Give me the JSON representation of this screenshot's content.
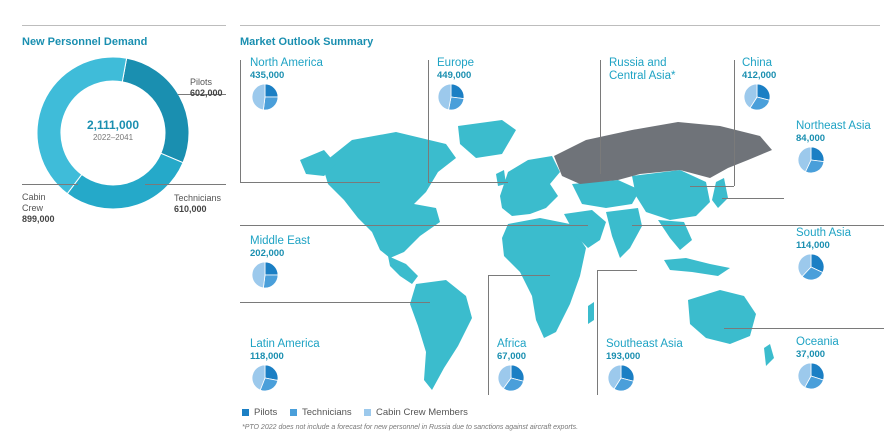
{
  "chart_data": [
    {
      "type": "pie",
      "title": "New Personnel Demand",
      "center_value": "2,111,000",
      "center_sub": "2022–2041",
      "categories": [
        "Pilots",
        "Technicians",
        "Cabin Crew"
      ],
      "values": [
        602000,
        610000,
        899000
      ],
      "labels": [
        {
          "name": "Pilots",
          "value": "602,000"
        },
        {
          "name": "Technicians",
          "value": "610,000"
        },
        {
          "name_line1": "Cabin",
          "name_line2": "Crew",
          "value": "899,000"
        }
      ],
      "colors": [
        "#1a8fb0",
        "#25a9c9",
        "#3fbcd9"
      ]
    },
    {
      "type": "pie",
      "title": "Market Outlook Summary",
      "series_labels": [
        "Pilots",
        "Technicians",
        "Cabin Crew Members"
      ],
      "series_colors": [
        "#1b7fc4",
        "#4a9fda",
        "#9cc9ec"
      ],
      "regions": [
        {
          "name": "North America",
          "total": "435,000",
          "shares": [
            0.25,
            0.27,
            0.48
          ]
        },
        {
          "name": "Europe",
          "total": "449,000",
          "shares": [
            0.27,
            0.26,
            0.47
          ]
        },
        {
          "name_line1": "Russia and",
          "name_line2": "Central Asia*",
          "total": ""
        },
        {
          "name": "China",
          "total": "412,000",
          "shares": [
            0.29,
            0.3,
            0.41
          ]
        },
        {
          "name": "Northeast Asia",
          "total": "84,000",
          "shares": [
            0.27,
            0.3,
            0.43
          ]
        },
        {
          "name": "Middle East",
          "total": "202,000",
          "shares": [
            0.25,
            0.27,
            0.48
          ]
        },
        {
          "name": "South Asia",
          "total": "114,000",
          "shares": [
            0.32,
            0.3,
            0.38
          ]
        },
        {
          "name": "Latin America",
          "total": "118,000",
          "shares": [
            0.28,
            0.28,
            0.44
          ]
        },
        {
          "name": "Africa",
          "total": "67,000",
          "shares": [
            0.29,
            0.31,
            0.4
          ]
        },
        {
          "name": "Southeast Asia",
          "total": "193,000",
          "shares": [
            0.29,
            0.3,
            0.41
          ]
        },
        {
          "name": "Oceania",
          "total": "37,000",
          "shares": [
            0.3,
            0.28,
            0.42
          ]
        }
      ]
    }
  ],
  "footnote": "*PTO 2022 does not include a forecast for new personnel in Russia due to sanctions against aircraft exports."
}
